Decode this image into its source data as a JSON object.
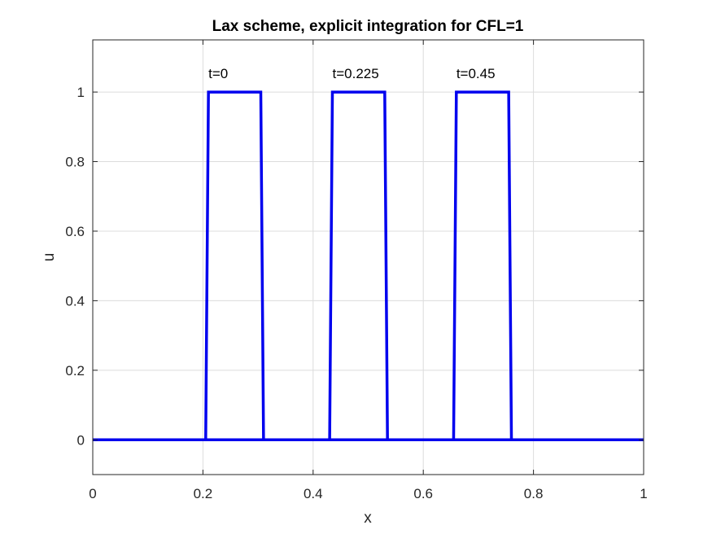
{
  "chart_data": {
    "type": "line",
    "title": "Lax scheme, explicit integration for CFL=1",
    "xlabel": "x",
    "ylabel": "u",
    "xlim": [
      0,
      1
    ],
    "ylim": [
      -0.1,
      1.15
    ],
    "xticks": [
      0,
      0.2,
      0.4,
      0.6,
      0.8,
      1
    ],
    "xtick_labels": [
      "0",
      "0.2",
      "0.4",
      "0.6",
      "0.8",
      "1"
    ],
    "yticks": [
      0,
      0.2,
      0.4,
      0.6,
      0.8,
      1
    ],
    "ytick_labels": [
      "0",
      "0.2",
      "0.4",
      "0.6",
      "0.8",
      "1"
    ],
    "grid": true,
    "line_color": "#0000ee",
    "series": [
      {
        "x": [
          0,
          0.205,
          0.21,
          0.305,
          0.31,
          1
        ],
        "y": [
          0,
          0,
          1,
          1,
          0,
          0
        ]
      },
      {
        "x": [
          0,
          0.43,
          0.435,
          0.53,
          0.535,
          1
        ],
        "y": [
          0,
          0,
          1,
          1,
          0,
          0
        ]
      },
      {
        "x": [
          0,
          0.655,
          0.66,
          0.755,
          0.76,
          1
        ],
        "y": [
          0,
          0,
          1,
          1,
          0,
          0
        ]
      }
    ],
    "annotations": [
      {
        "text": "t=0",
        "x": 0.21,
        "y": 1.04
      },
      {
        "text": "t=0.225",
        "x": 0.435,
        "y": 1.04
      },
      {
        "text": "t=0.45",
        "x": 0.66,
        "y": 1.04
      }
    ]
  }
}
